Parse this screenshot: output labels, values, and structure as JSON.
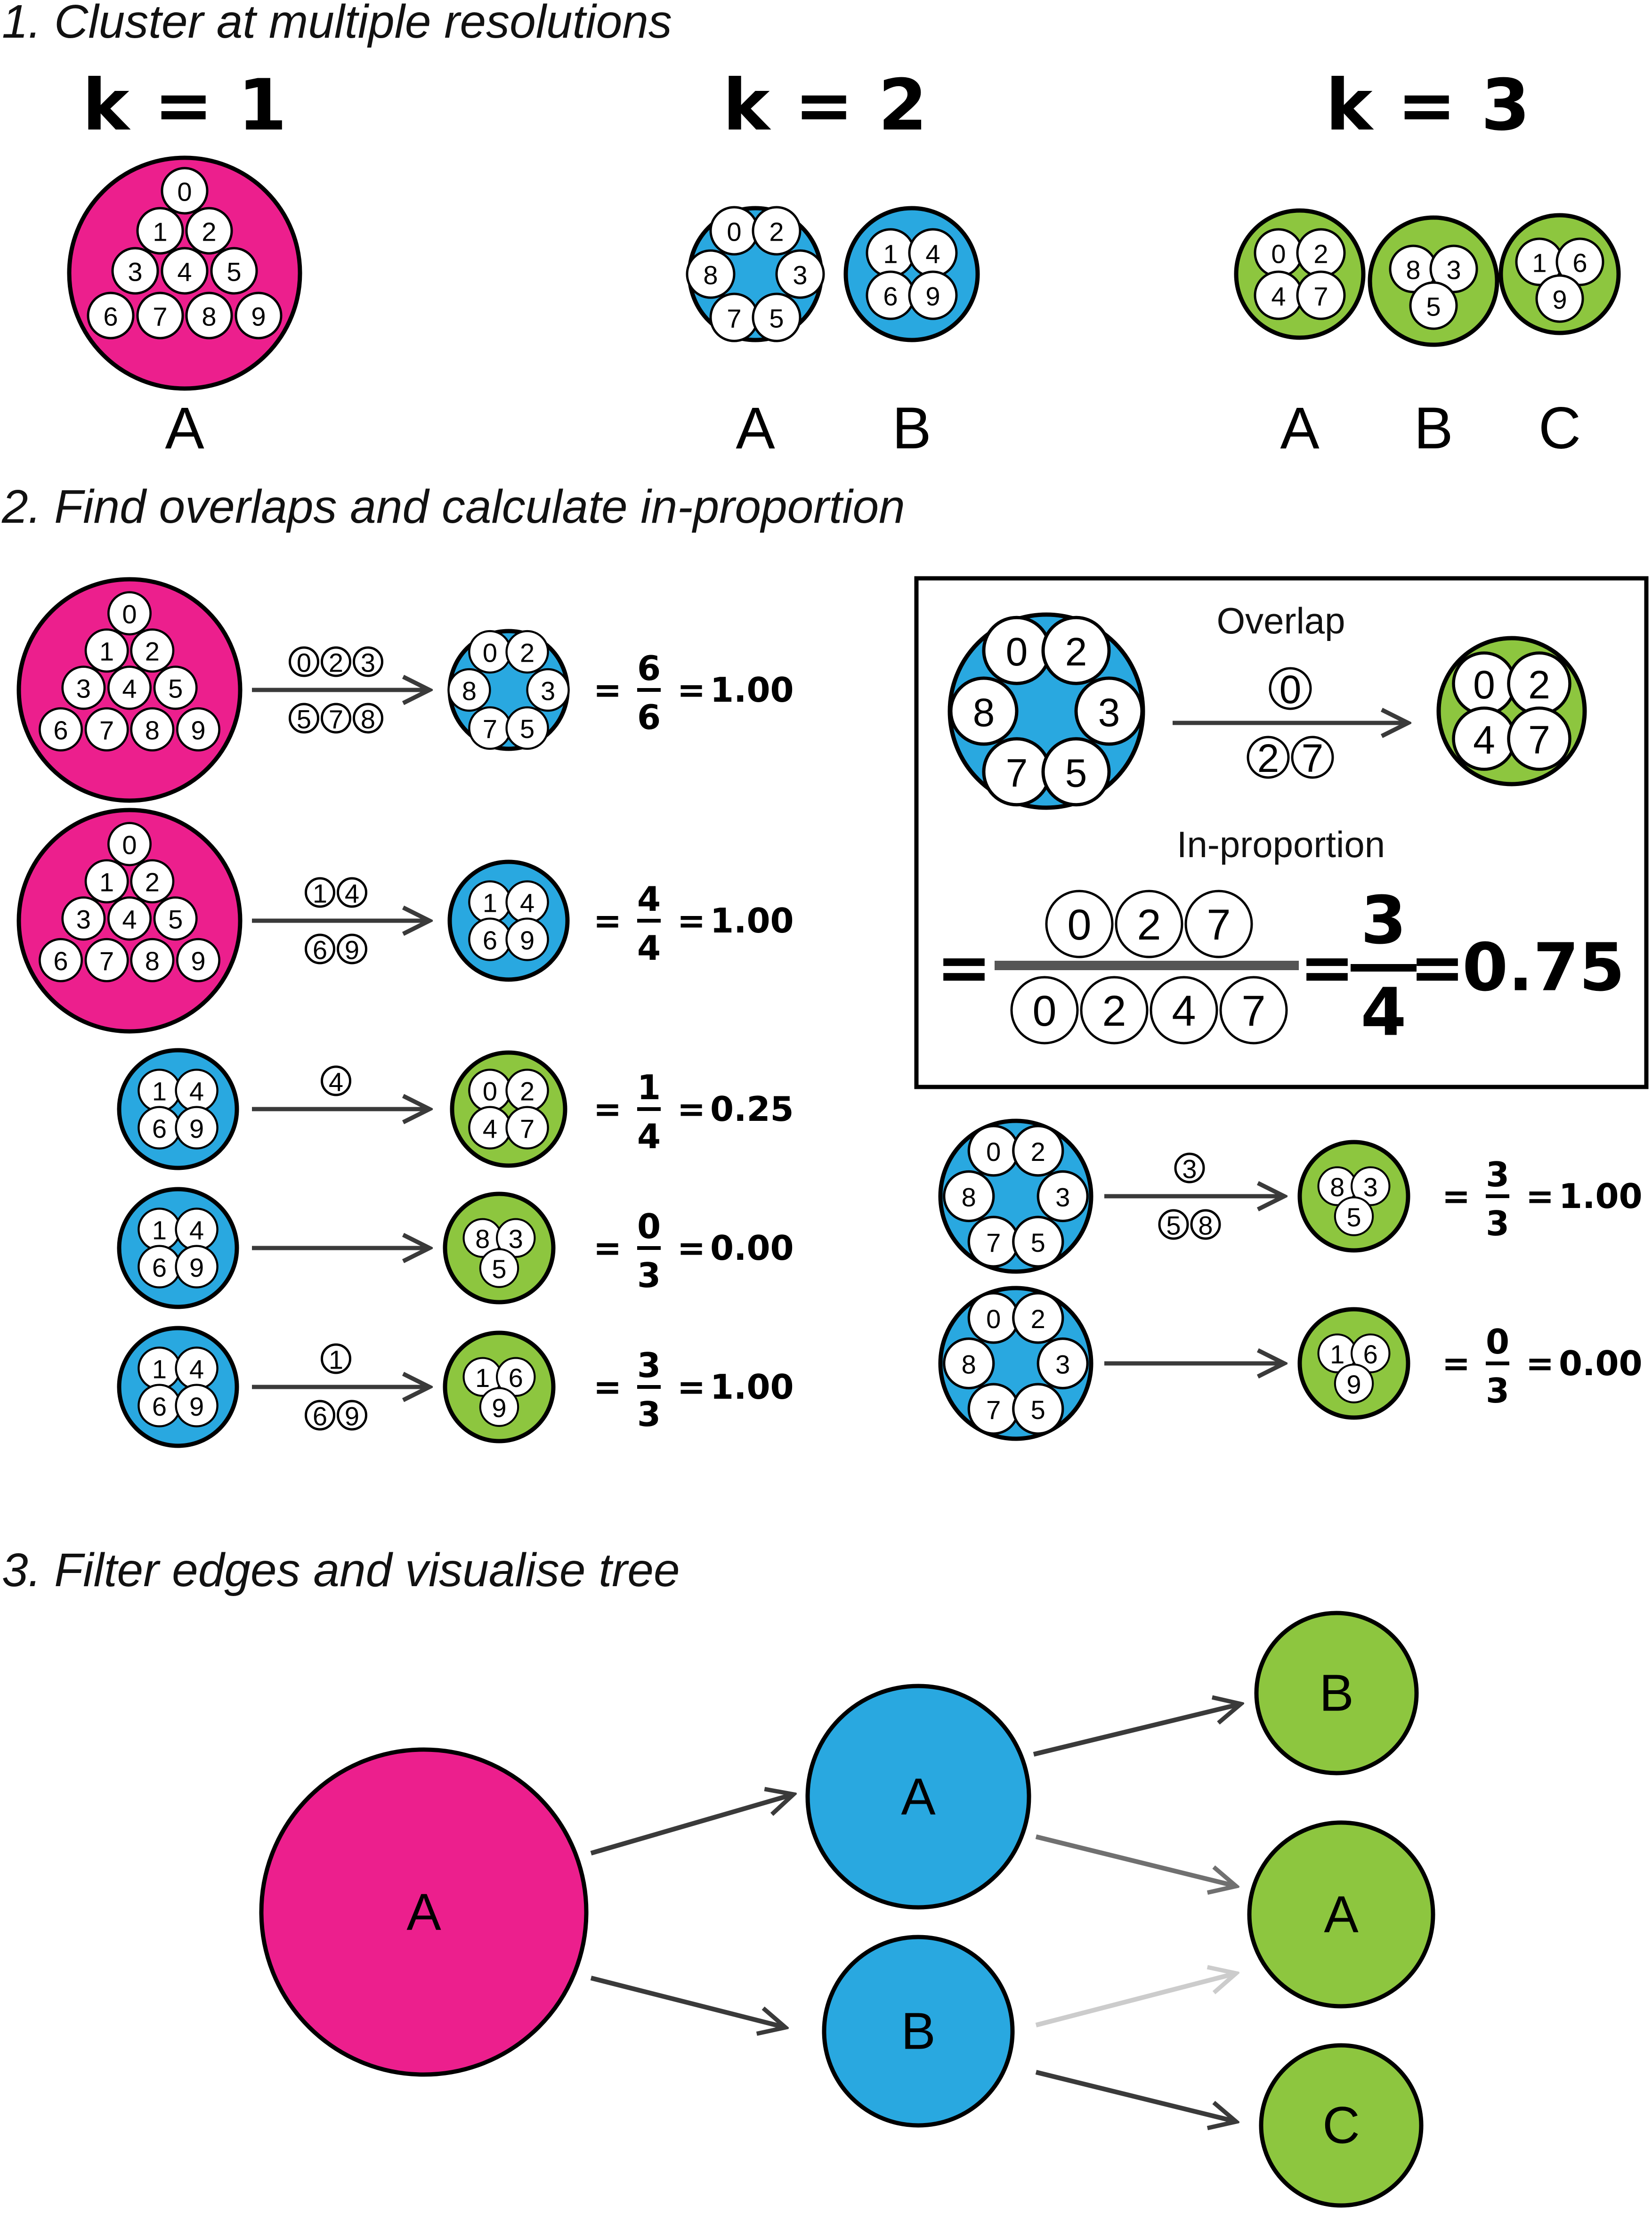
{
  "colors": {
    "k1": "#EC1F8D",
    "k2": "#29A8E0",
    "k3": "#8DC63F",
    "arrow": "#3a3a3a",
    "arrow_mid": "#707070",
    "arrow_light": "#cccccc"
  },
  "section1": {
    "title": "1. Cluster at multiple resolutions",
    "resolutions": [
      {
        "k_label": "k = 1",
        "clusters": [
          {
            "label": "A",
            "members": [
              "0",
              "1",
              "2",
              "3",
              "4",
              "5",
              "6",
              "7",
              "8",
              "9"
            ]
          }
        ]
      },
      {
        "k_label": "k = 2",
        "clusters": [
          {
            "label": "A",
            "members": [
              "0",
              "2",
              "8",
              "3",
              "7",
              "5"
            ]
          },
          {
            "label": "B",
            "members": [
              "1",
              "4",
              "6",
              "9"
            ]
          }
        ]
      },
      {
        "k_label": "k = 3",
        "clusters": [
          {
            "label": "A",
            "members": [
              "0",
              "2",
              "4",
              "7"
            ]
          },
          {
            "label": "B",
            "members": [
              "8",
              "3",
              "5"
            ]
          },
          {
            "label": "C",
            "members": [
              "1",
              "6",
              "9"
            ]
          }
        ]
      }
    ]
  },
  "section2": {
    "title": "2. Find overlaps and calculate in-proportion",
    "rows": [
      {
        "from": "k1-A",
        "to": "k2-A",
        "overlap_top": [
          "0",
          "2",
          "3"
        ],
        "overlap_bottom": [
          "5",
          "7",
          "8"
        ],
        "numerator": "6",
        "denominator": "6",
        "result": "1.00"
      },
      {
        "from": "k1-A",
        "to": "k2-B",
        "overlap_top": [
          "1",
          "4"
        ],
        "overlap_bottom": [
          "6",
          "9"
        ],
        "numerator": "4",
        "denominator": "4",
        "result": "1.00"
      },
      {
        "from": "k2-B",
        "to": "k3-A",
        "overlap_top": [
          "4"
        ],
        "overlap_bottom": [],
        "numerator": "1",
        "denominator": "4",
        "result": "0.25"
      },
      {
        "from": "k2-B",
        "to": "k3-B",
        "overlap_top": [],
        "overlap_bottom": [],
        "numerator": "0",
        "denominator": "3",
        "result": "0.00"
      },
      {
        "from": "k2-B",
        "to": "k3-C",
        "overlap_top": [
          "1"
        ],
        "overlap_bottom": [
          "6",
          "9"
        ],
        "numerator": "3",
        "denominator": "3",
        "result": "1.00"
      },
      {
        "from": "k2-A",
        "to": "k3-B",
        "overlap_top": [
          "3"
        ],
        "overlap_bottom": [
          "5",
          "8"
        ],
        "numerator": "3",
        "denominator": "3",
        "result": "1.00"
      },
      {
        "from": "k2-A",
        "to": "k3-C",
        "overlap_top": [],
        "overlap_bottom": [],
        "numerator": "0",
        "denominator": "3",
        "result": "0.00"
      }
    ],
    "example": {
      "overlap_label": "Overlap",
      "inprop_label": "In-proportion",
      "overlap_top": [
        "0"
      ],
      "overlap_bottom": [
        "2",
        "7"
      ],
      "frac_top": [
        "0",
        "2",
        "7"
      ],
      "frac_bottom": [
        "0",
        "2",
        "4",
        "7"
      ],
      "numerator": "3",
      "denominator": "4",
      "result": "0.75"
    }
  },
  "section3": {
    "title": "3. Filter edges and visualise tree",
    "nodes": [
      {
        "id": "k1-A",
        "label": "A"
      },
      {
        "id": "k2-A",
        "label": "A"
      },
      {
        "id": "k2-B",
        "label": "B"
      },
      {
        "id": "k3-B",
        "label": "B"
      },
      {
        "id": "k3-A",
        "label": "A"
      },
      {
        "id": "k3-C",
        "label": "C"
      }
    ]
  }
}
